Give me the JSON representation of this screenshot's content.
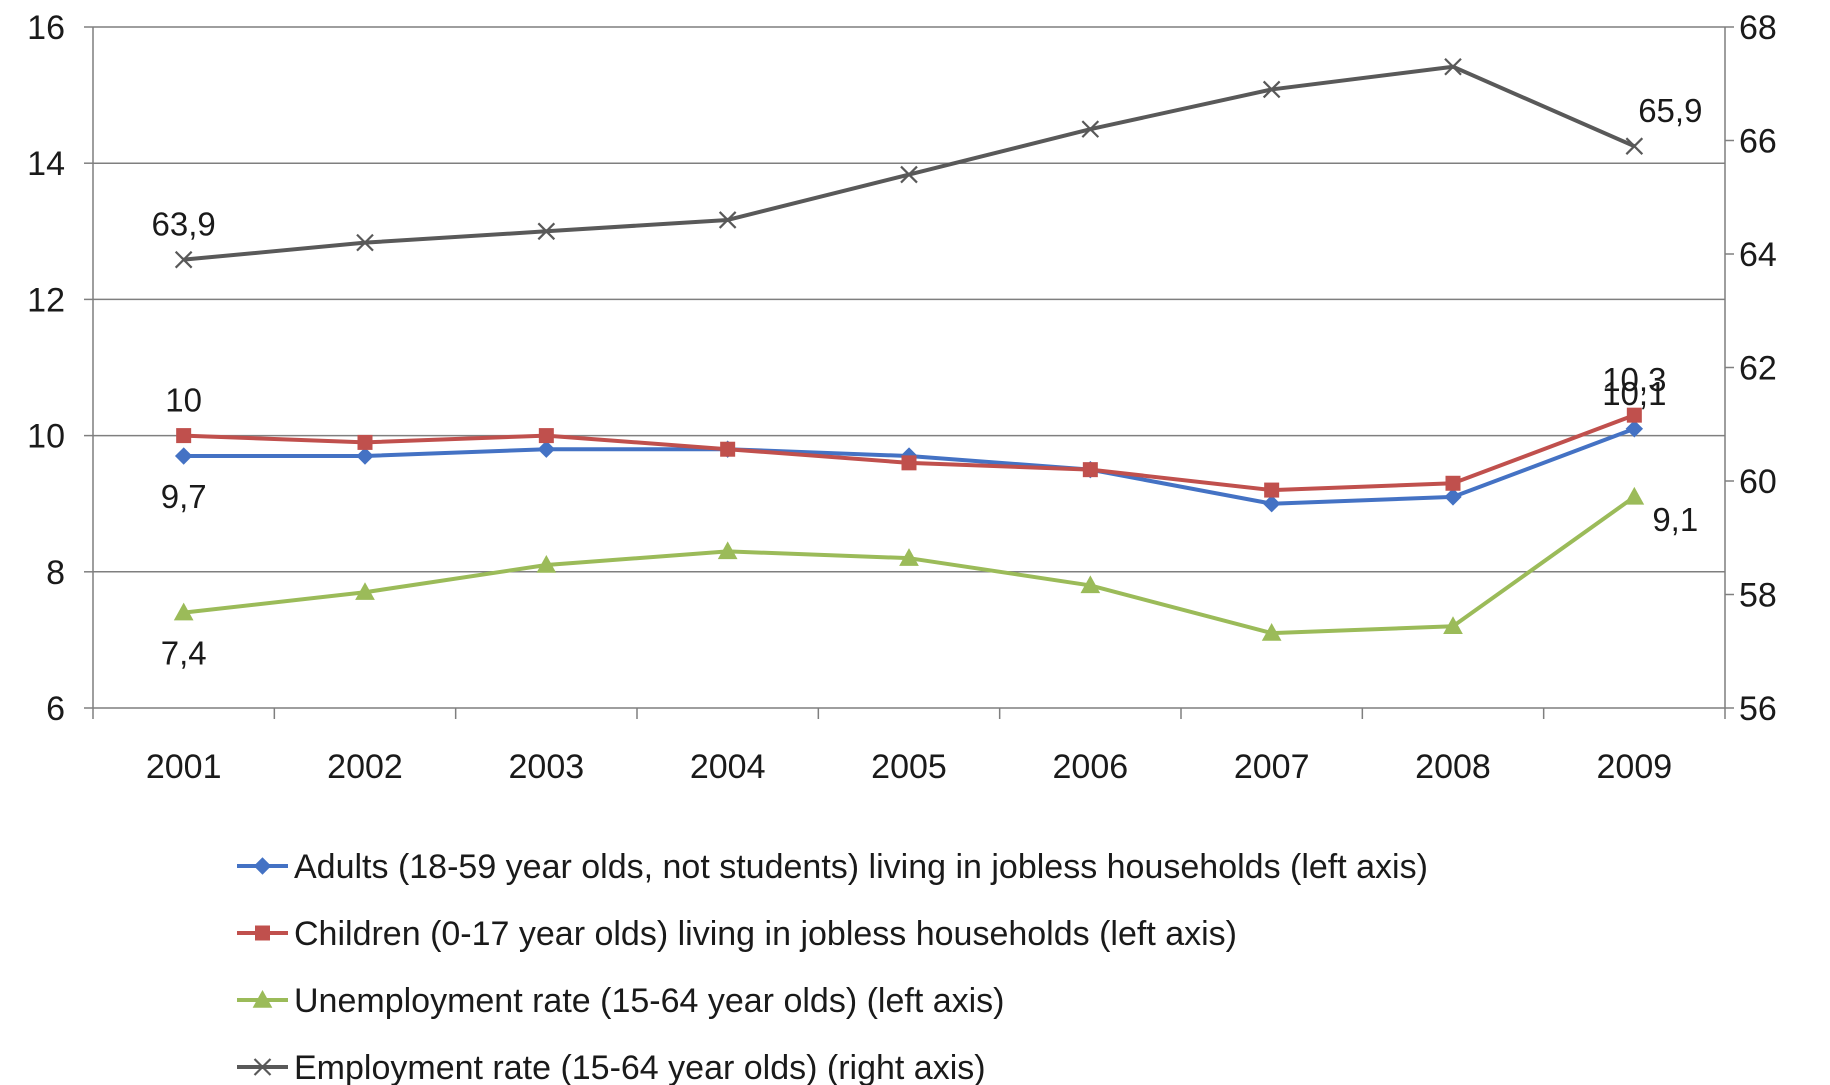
{
  "chart_data": {
    "type": "line",
    "categories": [
      "2001",
      "2002",
      "2003",
      "2004",
      "2005",
      "2006",
      "2007",
      "2008",
      "2009"
    ],
    "y_left": {
      "range": [
        6,
        16
      ],
      "ticks": [
        "6",
        "8",
        "10",
        "12",
        "14",
        "16"
      ]
    },
    "y_right": {
      "range": [
        56,
        68
      ],
      "ticks": [
        "56",
        "58",
        "60",
        "62",
        "64",
        "66",
        "68"
      ]
    },
    "grid": true,
    "legend_position": "bottom",
    "series": [
      {
        "name": "Adults (18-59 year olds, not students) living in jobless households (left axis)",
        "axis": "left",
        "color": "#4472c4",
        "marker": "diamond",
        "values": [
          9.7,
          9.7,
          9.8,
          9.8,
          9.7,
          9.5,
          9.0,
          9.1,
          10.1
        ]
      },
      {
        "name": "Children (0-17 year olds) living in jobless households (left axis)",
        "axis": "left",
        "color": "#c0504d",
        "marker": "square",
        "values": [
          10.0,
          9.9,
          10.0,
          9.8,
          9.6,
          9.5,
          9.2,
          9.3,
          10.3
        ]
      },
      {
        "name": "Unemployment rate (15-64 year olds) (left axis)",
        "axis": "left",
        "color": "#9bbb59",
        "marker": "triangle",
        "values": [
          7.4,
          7.7,
          8.1,
          8.3,
          8.2,
          7.8,
          7.1,
          7.2,
          9.1
        ]
      },
      {
        "name": "Employment rate (15-64 year olds) (right axis)",
        "axis": "right",
        "color": "#595959",
        "marker": "x",
        "values": [
          63.9,
          64.2,
          64.4,
          64.6,
          65.4,
          66.2,
          66.9,
          67.3,
          65.9
        ]
      }
    ],
    "data_labels": [
      {
        "series": 0,
        "index": 0,
        "text": "9,7",
        "place": "below"
      },
      {
        "series": 0,
        "index": 8,
        "text": "10,1",
        "place": "above"
      },
      {
        "series": 1,
        "index": 0,
        "text": "10",
        "place": "above"
      },
      {
        "series": 1,
        "index": 8,
        "text": "10,3",
        "place": "above"
      },
      {
        "series": 2,
        "index": 0,
        "text": "7,4",
        "place": "below"
      },
      {
        "series": 2,
        "index": 8,
        "text": "9,1",
        "place": "right-below"
      },
      {
        "series": 3,
        "index": 0,
        "text": "63,9",
        "place": "above"
      },
      {
        "series": 3,
        "index": 8,
        "text": "65,9",
        "place": "above-right"
      }
    ]
  }
}
